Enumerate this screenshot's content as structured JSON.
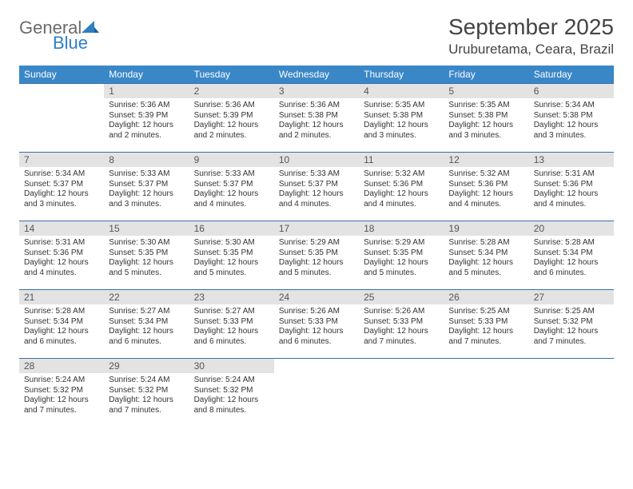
{
  "brand": {
    "name1": "General",
    "name2": "Blue"
  },
  "title": "September 2025",
  "location": "Uruburetama, Ceara, Brazil",
  "colors": {
    "header_bg": "#3a87c8",
    "header_text": "#ffffff",
    "daynum_bg": "#e3e3e3",
    "row_border": "#3a6fa5",
    "logo_gray": "#6b6b6b",
    "logo_blue": "#2f7fc2"
  },
  "weekdays": [
    "Sunday",
    "Monday",
    "Tuesday",
    "Wednesday",
    "Thursday",
    "Friday",
    "Saturday"
  ],
  "layout": {
    "start_offset": 1,
    "days_in_month": 30
  },
  "days": {
    "1": {
      "sunrise": "Sunrise: 5:36 AM",
      "sunset": "Sunset: 5:39 PM",
      "daylight": "Daylight: 12 hours and 2 minutes."
    },
    "2": {
      "sunrise": "Sunrise: 5:36 AM",
      "sunset": "Sunset: 5:39 PM",
      "daylight": "Daylight: 12 hours and 2 minutes."
    },
    "3": {
      "sunrise": "Sunrise: 5:36 AM",
      "sunset": "Sunset: 5:38 PM",
      "daylight": "Daylight: 12 hours and 2 minutes."
    },
    "4": {
      "sunrise": "Sunrise: 5:35 AM",
      "sunset": "Sunset: 5:38 PM",
      "daylight": "Daylight: 12 hours and 3 minutes."
    },
    "5": {
      "sunrise": "Sunrise: 5:35 AM",
      "sunset": "Sunset: 5:38 PM",
      "daylight": "Daylight: 12 hours and 3 minutes."
    },
    "6": {
      "sunrise": "Sunrise: 5:34 AM",
      "sunset": "Sunset: 5:38 PM",
      "daylight": "Daylight: 12 hours and 3 minutes."
    },
    "7": {
      "sunrise": "Sunrise: 5:34 AM",
      "sunset": "Sunset: 5:37 PM",
      "daylight": "Daylight: 12 hours and 3 minutes."
    },
    "8": {
      "sunrise": "Sunrise: 5:33 AM",
      "sunset": "Sunset: 5:37 PM",
      "daylight": "Daylight: 12 hours and 3 minutes."
    },
    "9": {
      "sunrise": "Sunrise: 5:33 AM",
      "sunset": "Sunset: 5:37 PM",
      "daylight": "Daylight: 12 hours and 4 minutes."
    },
    "10": {
      "sunrise": "Sunrise: 5:33 AM",
      "sunset": "Sunset: 5:37 PM",
      "daylight": "Daylight: 12 hours and 4 minutes."
    },
    "11": {
      "sunrise": "Sunrise: 5:32 AM",
      "sunset": "Sunset: 5:36 PM",
      "daylight": "Daylight: 12 hours and 4 minutes."
    },
    "12": {
      "sunrise": "Sunrise: 5:32 AM",
      "sunset": "Sunset: 5:36 PM",
      "daylight": "Daylight: 12 hours and 4 minutes."
    },
    "13": {
      "sunrise": "Sunrise: 5:31 AM",
      "sunset": "Sunset: 5:36 PM",
      "daylight": "Daylight: 12 hours and 4 minutes."
    },
    "14": {
      "sunrise": "Sunrise: 5:31 AM",
      "sunset": "Sunset: 5:36 PM",
      "daylight": "Daylight: 12 hours and 4 minutes."
    },
    "15": {
      "sunrise": "Sunrise: 5:30 AM",
      "sunset": "Sunset: 5:35 PM",
      "daylight": "Daylight: 12 hours and 5 minutes."
    },
    "16": {
      "sunrise": "Sunrise: 5:30 AM",
      "sunset": "Sunset: 5:35 PM",
      "daylight": "Daylight: 12 hours and 5 minutes."
    },
    "17": {
      "sunrise": "Sunrise: 5:29 AM",
      "sunset": "Sunset: 5:35 PM",
      "daylight": "Daylight: 12 hours and 5 minutes."
    },
    "18": {
      "sunrise": "Sunrise: 5:29 AM",
      "sunset": "Sunset: 5:35 PM",
      "daylight": "Daylight: 12 hours and 5 minutes."
    },
    "19": {
      "sunrise": "Sunrise: 5:28 AM",
      "sunset": "Sunset: 5:34 PM",
      "daylight": "Daylight: 12 hours and 5 minutes."
    },
    "20": {
      "sunrise": "Sunrise: 5:28 AM",
      "sunset": "Sunset: 5:34 PM",
      "daylight": "Daylight: 12 hours and 6 minutes."
    },
    "21": {
      "sunrise": "Sunrise: 5:28 AM",
      "sunset": "Sunset: 5:34 PM",
      "daylight": "Daylight: 12 hours and 6 minutes."
    },
    "22": {
      "sunrise": "Sunrise: 5:27 AM",
      "sunset": "Sunset: 5:34 PM",
      "daylight": "Daylight: 12 hours and 6 minutes."
    },
    "23": {
      "sunrise": "Sunrise: 5:27 AM",
      "sunset": "Sunset: 5:33 PM",
      "daylight": "Daylight: 12 hours and 6 minutes."
    },
    "24": {
      "sunrise": "Sunrise: 5:26 AM",
      "sunset": "Sunset: 5:33 PM",
      "daylight": "Daylight: 12 hours and 6 minutes."
    },
    "25": {
      "sunrise": "Sunrise: 5:26 AM",
      "sunset": "Sunset: 5:33 PM",
      "daylight": "Daylight: 12 hours and 7 minutes."
    },
    "26": {
      "sunrise": "Sunrise: 5:25 AM",
      "sunset": "Sunset: 5:33 PM",
      "daylight": "Daylight: 12 hours and 7 minutes."
    },
    "27": {
      "sunrise": "Sunrise: 5:25 AM",
      "sunset": "Sunset: 5:32 PM",
      "daylight": "Daylight: 12 hours and 7 minutes."
    },
    "28": {
      "sunrise": "Sunrise: 5:24 AM",
      "sunset": "Sunset: 5:32 PM",
      "daylight": "Daylight: 12 hours and 7 minutes."
    },
    "29": {
      "sunrise": "Sunrise: 5:24 AM",
      "sunset": "Sunset: 5:32 PM",
      "daylight": "Daylight: 12 hours and 7 minutes."
    },
    "30": {
      "sunrise": "Sunrise: 5:24 AM",
      "sunset": "Sunset: 5:32 PM",
      "daylight": "Daylight: 12 hours and 8 minutes."
    }
  }
}
